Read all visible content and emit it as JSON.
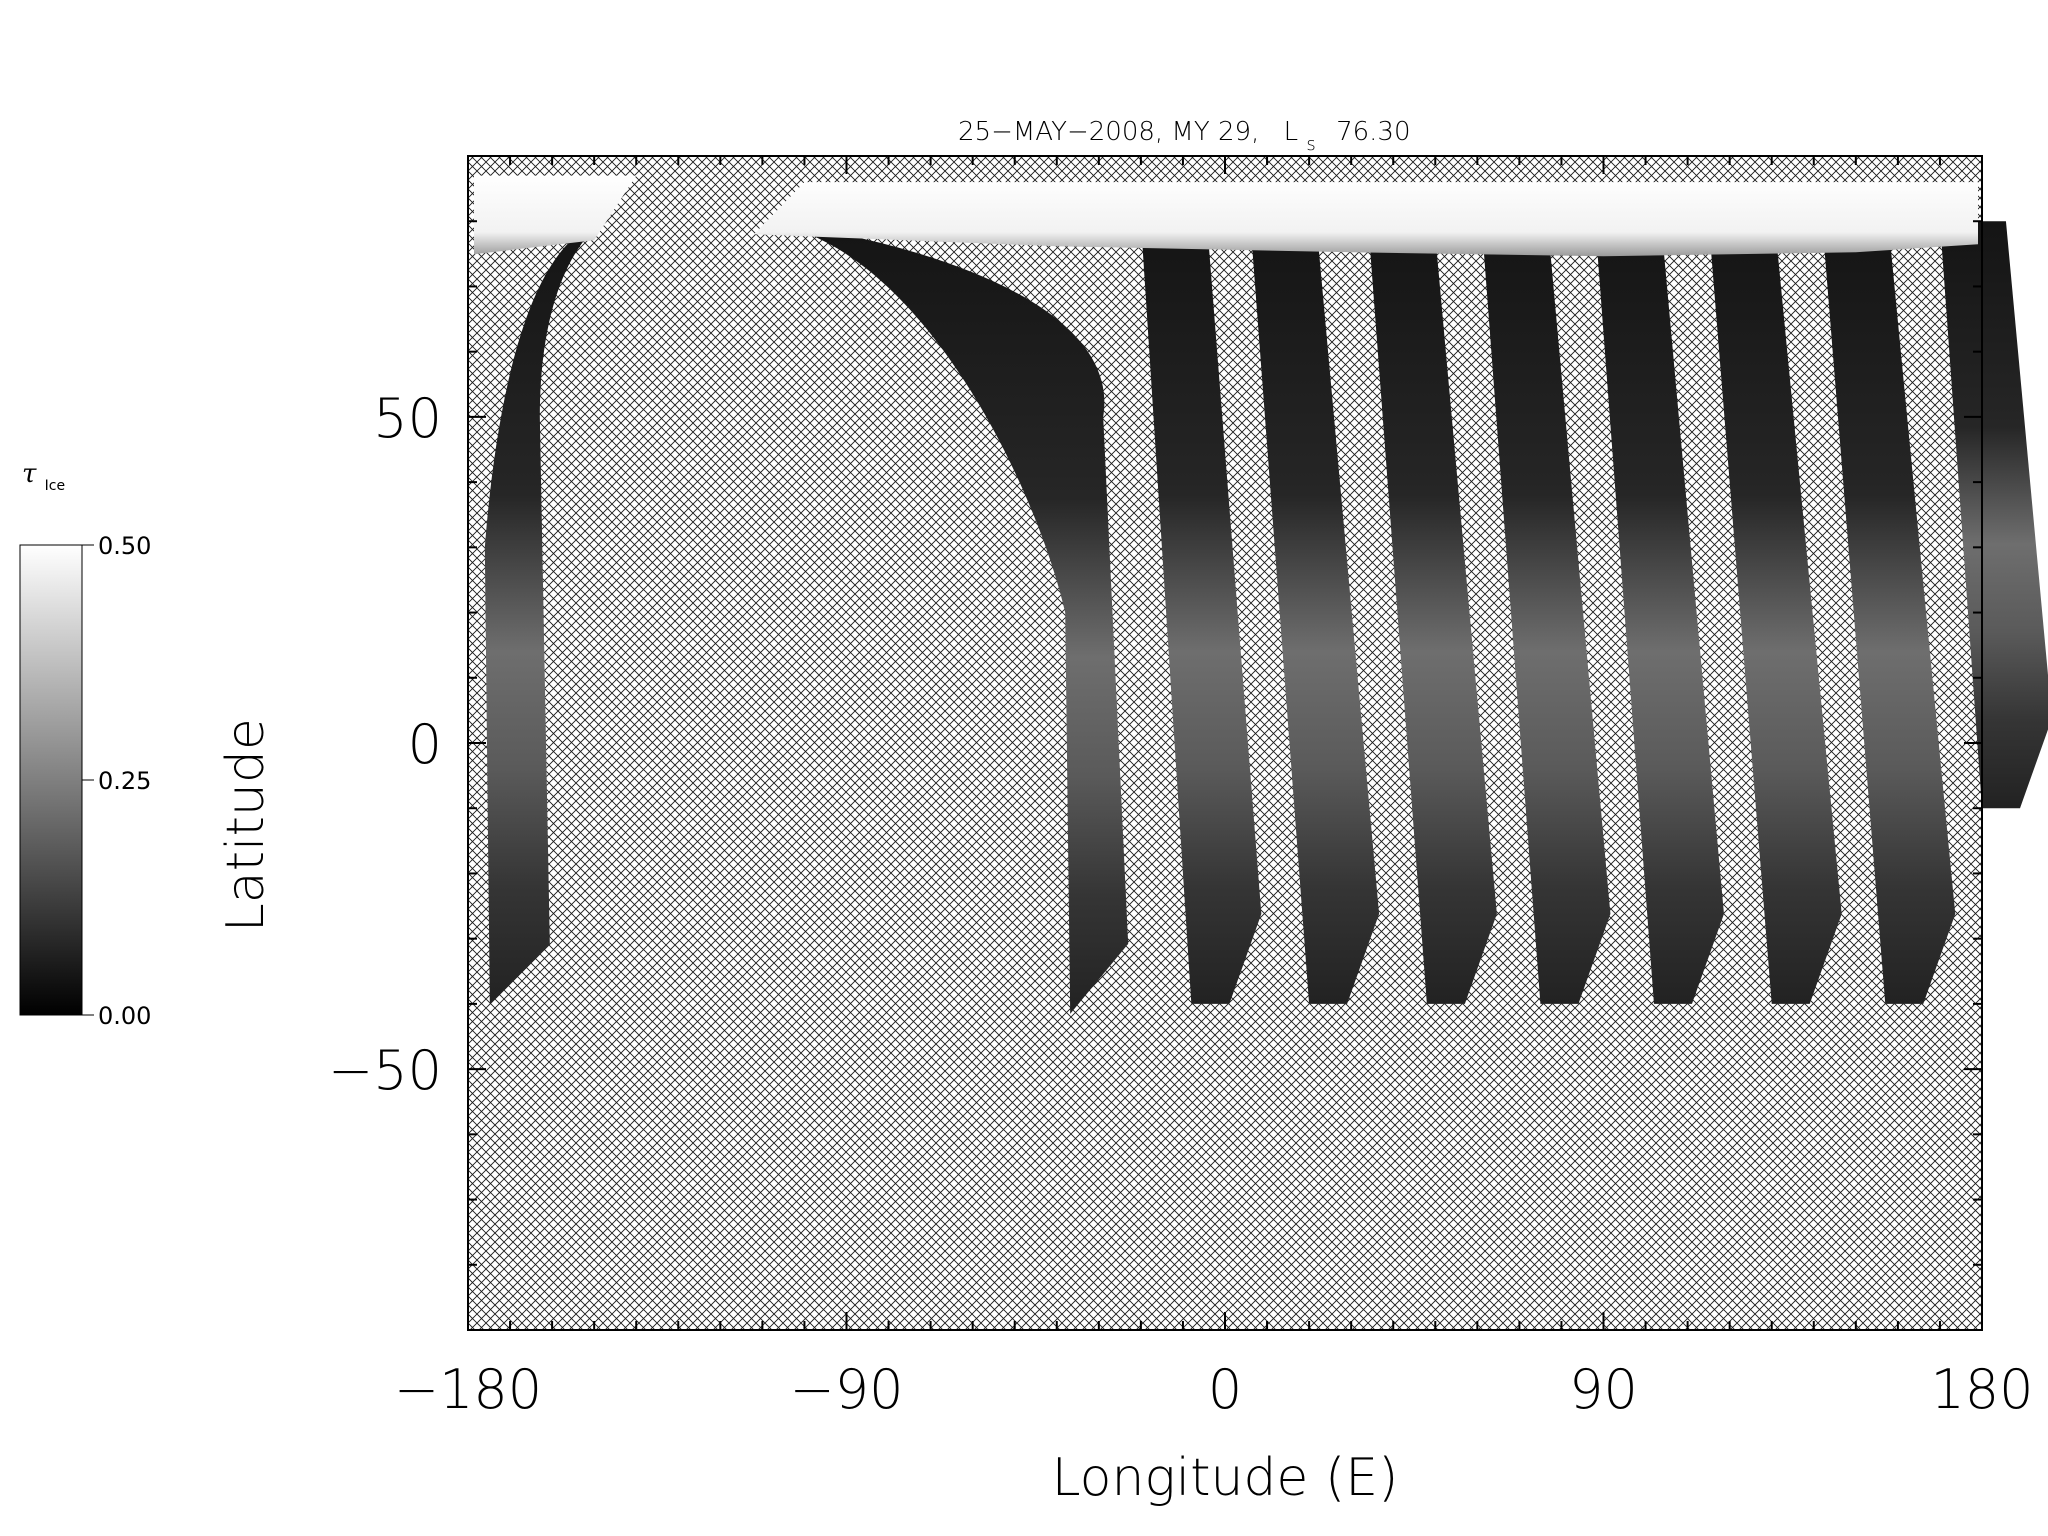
{
  "chart_data": {
    "type": "heatmap",
    "title": "25−MAY−2008, MY 29,",
    "title_ls_main": "L",
    "title_ls_sub": "s",
    "title_ls_value": "76.30",
    "xlabel": "Longitude (E)",
    "ylabel": "Latitude",
    "xlim": [
      -180,
      180
    ],
    "ylim": [
      -90,
      90
    ],
    "x_ticks": [
      -180,
      -90,
      0,
      90,
      180
    ],
    "x_tick_labels": [
      "−180",
      "−90",
      "0",
      "90",
      "180"
    ],
    "y_ticks": [
      -50,
      0,
      50
    ],
    "y_tick_labels": [
      "−50",
      "0",
      "50"
    ],
    "grid": false,
    "no_data_fill": "crosshatch",
    "north_polar_cap_lat_min": 78,
    "colorbar": {
      "label_main": "τ",
      "label_sub": "Ice",
      "min": 0.0,
      "max": 0.5,
      "tick_values": [
        0.0,
        0.25,
        0.5
      ],
      "tick_labels": [
        "0.00",
        "0.25",
        "0.50"
      ],
      "colormap": "grayscale",
      "low_color": "#000000",
      "high_color": "#ffffff"
    },
    "swaths": [
      {
        "lon_north": -150,
        "lon_south": -176,
        "lat_north": 80,
        "lat_south": -40,
        "curved_north": true
      },
      {
        "lon_north": -112,
        "lon_south": -38,
        "lat_north": 80,
        "lat_south": -40,
        "curved_north": true
      },
      {
        "lon_north": -20,
        "lon_south": -8,
        "lat_north": 80,
        "lat_south": -40
      },
      {
        "lon_north": 6,
        "lon_south": 20,
        "lat_north": 80,
        "lat_south": -40
      },
      {
        "lon_north": 34,
        "lon_south": 48,
        "lat_north": 80,
        "lat_south": -40
      },
      {
        "lon_north": 61,
        "lon_south": 75,
        "lat_north": 80,
        "lat_south": -40
      },
      {
        "lon_north": 88,
        "lon_south": 102,
        "lat_north": 80,
        "lat_south": -40
      },
      {
        "lon_north": 115,
        "lon_south": 130,
        "lat_north": 80,
        "lat_south": -40
      },
      {
        "lon_north": 142,
        "lon_south": 157,
        "lat_north": 80,
        "lat_south": -40
      },
      {
        "lon_north": 170,
        "lon_south": 180,
        "lat_north": 80,
        "lat_south": -10
      }
    ]
  }
}
